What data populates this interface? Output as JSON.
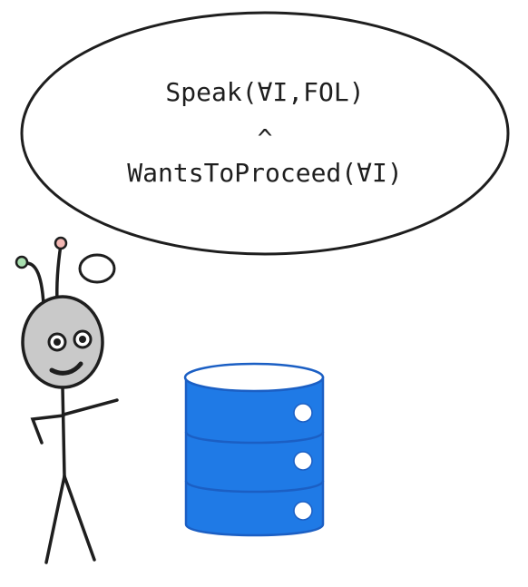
{
  "thought_bubble": {
    "line1": "Speak(∀I,FOL)",
    "operator": "^",
    "line2": "WantsToProceed(∀I)"
  },
  "colors": {
    "ink": "#1e1e1e",
    "alien_head": "#c9c9c9",
    "antenna_left_tip": "#a9e0b0",
    "antenna_right_tip": "#f4b8b4",
    "database_fill": "#1f7ae6",
    "database_stroke": "#1b5fc4"
  },
  "icons": {
    "character": "alien-stick-figure-icon",
    "database": "database-cylinder-icon"
  }
}
